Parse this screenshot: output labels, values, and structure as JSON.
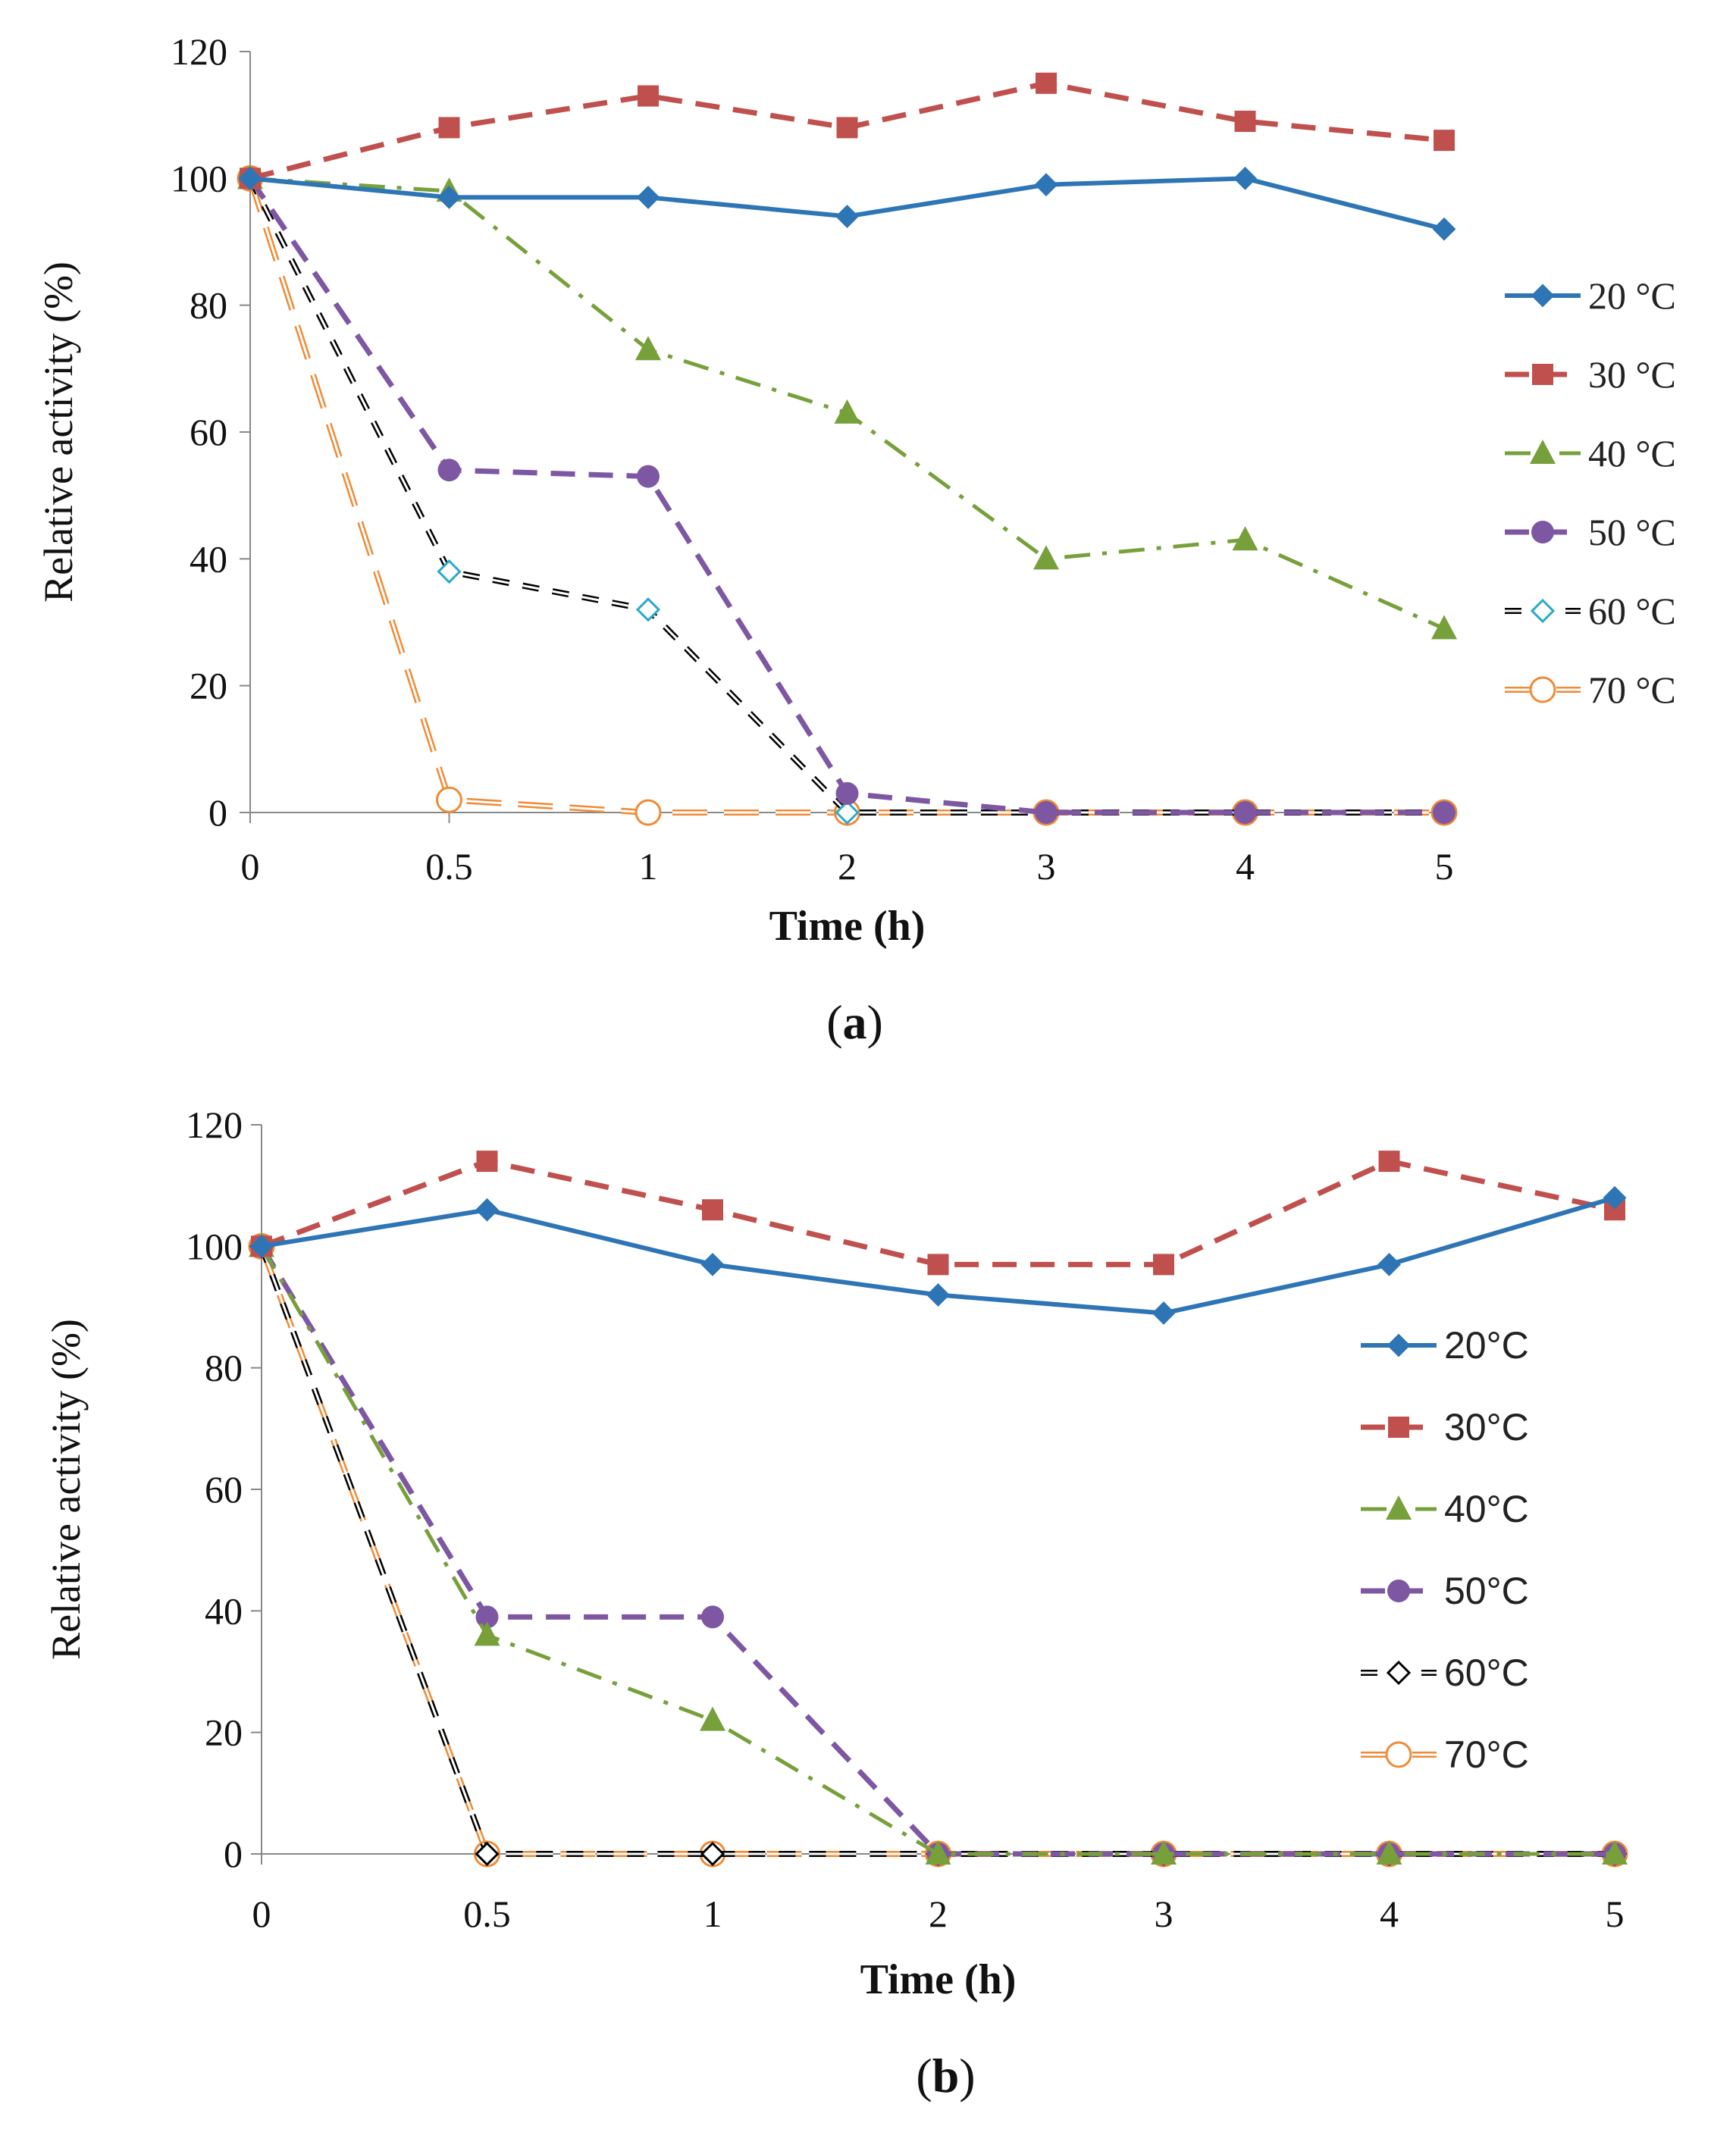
{
  "chart_data": [
    {
      "type": "line",
      "panel_label": {
        "open": "(",
        "letter": "a",
        "close": ")"
      },
      "xlabel": "Time (h)",
      "ylabel": "Relative activity (%)",
      "x_categories": [
        "0",
        "0.5",
        "1",
        "2",
        "3",
        "4",
        "5"
      ],
      "ylim": [
        0,
        120
      ],
      "yticks": [
        0,
        20,
        40,
        60,
        80,
        100,
        120
      ],
      "legend_position": "right",
      "series": [
        {
          "name": "20 °C",
          "color": "#2e75b6",
          "marker": "diamond",
          "dash": "solid",
          "values": [
            100,
            97,
            97,
            94,
            99,
            100,
            92
          ]
        },
        {
          "name": "30 °C",
          "color": "#c0504d",
          "marker": "square",
          "dash": "dash",
          "values": [
            100,
            108,
            113,
            108,
            115,
            109,
            106
          ]
        },
        {
          "name": "40 °C",
          "color": "#77a03b",
          "marker": "triangle",
          "dash": "dashdot",
          "values": [
            100,
            98,
            73,
            63,
            40,
            43,
            29
          ]
        },
        {
          "name": "50 °C",
          "color": "#7e57a3",
          "marker": "circle",
          "dash": "dash",
          "values": [
            100,
            54,
            53,
            3,
            0,
            0,
            0
          ]
        },
        {
          "name": "60 °C",
          "color": "#000000",
          "marker": "open-diamond",
          "marker_color": "#2aa9c9",
          "dash": "dash-hollow",
          "values": [
            100,
            38,
            32,
            0,
            0,
            0,
            0
          ]
        },
        {
          "name": "70 °C",
          "color": "#f08a35",
          "marker": "open-circle",
          "dash": "longdash-hollow",
          "values": [
            100,
            2,
            0,
            0,
            0,
            0,
            0
          ]
        }
      ]
    },
    {
      "type": "line",
      "panel_label": {
        "open": "(",
        "letter": "b",
        "close": ")"
      },
      "xlabel": "Time (h)",
      "ylabel": "Relative activity (%)",
      "x_categories": [
        "0",
        "0.5",
        "1",
        "2",
        "3",
        "4",
        "5"
      ],
      "ylim": [
        0,
        120
      ],
      "yticks": [
        0,
        20,
        40,
        60,
        80,
        100,
        120
      ],
      "legend_position": "right",
      "series": [
        {
          "name": "20°C",
          "color": "#2e75b6",
          "marker": "diamond",
          "dash": "solid",
          "values": [
            100,
            106,
            97,
            92,
            89,
            97,
            108
          ]
        },
        {
          "name": "30°C",
          "color": "#c0504d",
          "marker": "square",
          "dash": "dash",
          "values": [
            100,
            114,
            106,
            97,
            97,
            114,
            106
          ]
        },
        {
          "name": "40°C",
          "color": "#77a03b",
          "marker": "triangle",
          "dash": "dashdot",
          "values": [
            100,
            36,
            22,
            0,
            0,
            0,
            0
          ]
        },
        {
          "name": "50°C",
          "color": "#7e57a3",
          "marker": "circle",
          "dash": "dash",
          "values": [
            100,
            39,
            39,
            0,
            0,
            0,
            0
          ]
        },
        {
          "name": "60°C",
          "color": "#000000",
          "marker": "open-diamond",
          "marker_color": "#000000",
          "dash": "dash-hollow",
          "values": [
            100,
            0,
            0,
            0,
            0,
            0,
            0
          ]
        },
        {
          "name": "70°C",
          "color": "#f08a35",
          "marker": "open-circle",
          "dash": "longdash-hollow",
          "values": [
            100,
            0,
            0,
            0,
            0,
            0,
            0
          ]
        }
      ]
    }
  ]
}
